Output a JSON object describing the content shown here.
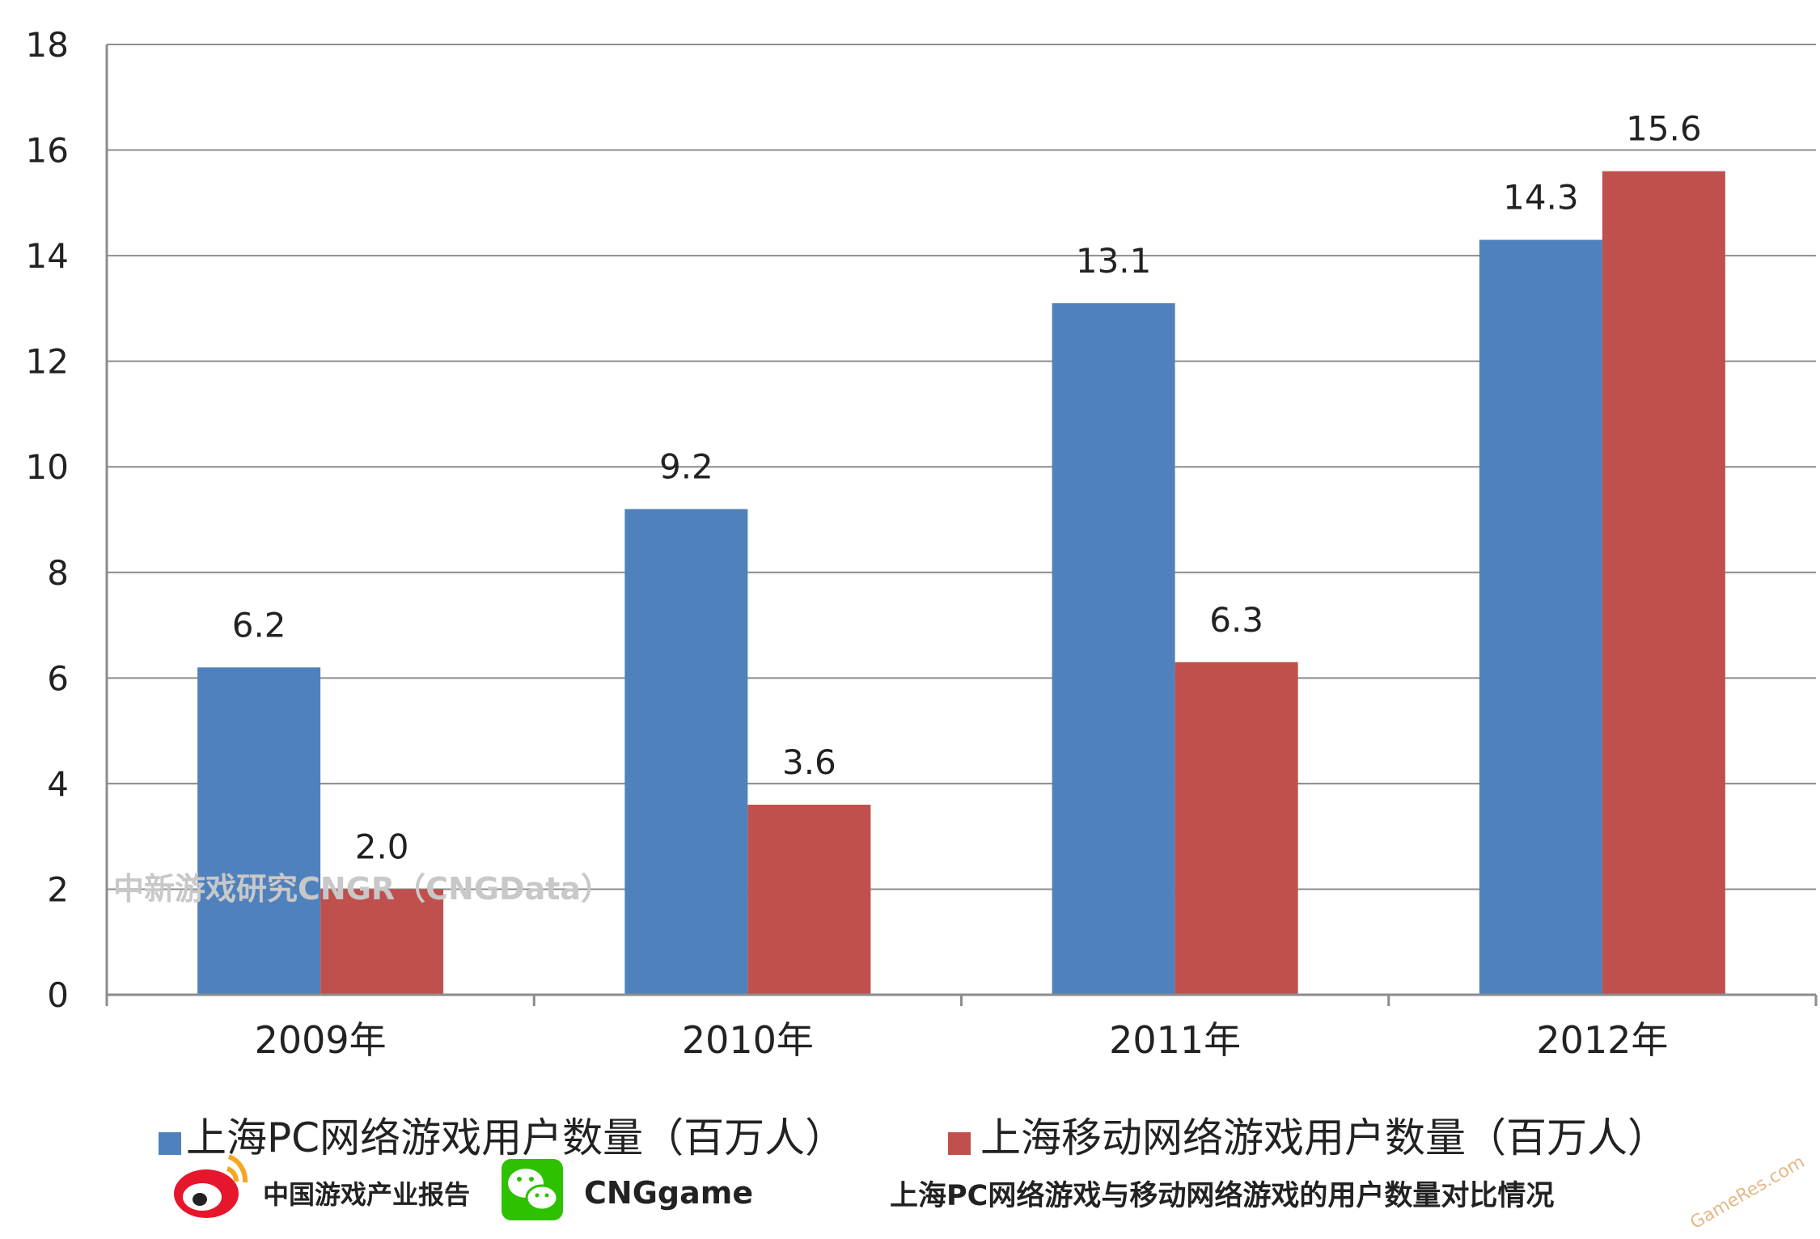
{
  "chart_data": {
    "type": "bar",
    "title": "上海PC网络游戏与移动网络游戏的用户数量对比情况",
    "categories": [
      "2009年",
      "2010年",
      "2011年",
      "2012年"
    ],
    "series": [
      {
        "name": "上海PC网络游戏用户数量（百万人）",
        "color": "#4f81bd",
        "values": [
          6.2,
          9.2,
          13.1,
          14.3
        ],
        "labels": [
          "6.2",
          "9.2",
          "13.1",
          "14.3"
        ]
      },
      {
        "name": "上海移动网络游戏用户数量（百万人）",
        "color": "#c0504d",
        "values": [
          2.0,
          3.6,
          6.3,
          15.6
        ],
        "labels": [
          "2.0",
          "3.6",
          "6.3",
          "15.6"
        ]
      }
    ],
    "ylim": [
      0,
      18
    ],
    "yticks": [
      "0",
      "2",
      "4",
      "6",
      "8",
      "10",
      "12",
      "14",
      "16",
      "18"
    ],
    "grid": true,
    "legend_position": "bottom"
  },
  "watermark": "中新游戏研究CNGR（CNGData）",
  "footer": {
    "weibo_label": "中国游戏产业报告",
    "wechat_label": "CNGgame",
    "caption": "上海PC网络游戏与移动网络游戏的用户数量对比情况"
  },
  "corner_watermark": "GameRes.com",
  "colors": {
    "grid": "#8c8c8c",
    "axis": "#8c8c8c",
    "weibo": "#e6162d",
    "wechat": "#2dc100"
  }
}
